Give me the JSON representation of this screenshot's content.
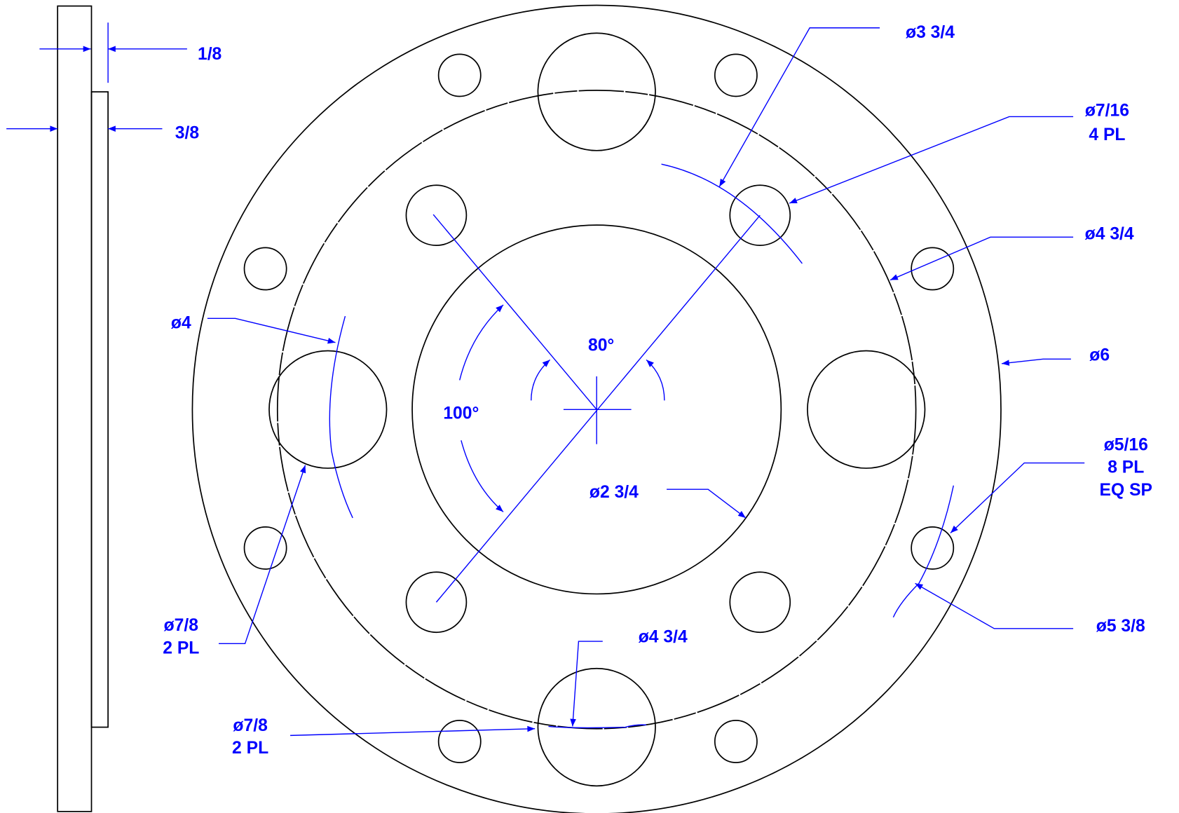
{
  "side_view": {
    "dimensions": [
      "1/8",
      "3/8"
    ]
  },
  "front_view": {
    "dimensions": [
      {
        "lines": [
          "ø3 3/4"
        ]
      },
      {
        "lines": [
          "ø7/16",
          "4 PL"
        ]
      },
      {
        "lines": [
          "ø4 3/4"
        ]
      },
      {
        "lines": [
          "ø6"
        ]
      },
      {
        "lines": [
          "ø5/16",
          "8 PL",
          "EQ SP"
        ]
      },
      {
        "lines": [
          "ø5 3/8"
        ]
      },
      {
        "lines": [
          "ø4 3/4"
        ]
      },
      {
        "lines": [
          "ø7/8",
          "2 PL"
        ]
      },
      {
        "lines": [
          "ø7/8",
          "2 PL"
        ]
      },
      {
        "lines": [
          "ø4"
        ]
      },
      {
        "lines": [
          "ø2 3/4"
        ]
      }
    ],
    "angles": [
      "80°",
      "100°"
    ]
  }
}
